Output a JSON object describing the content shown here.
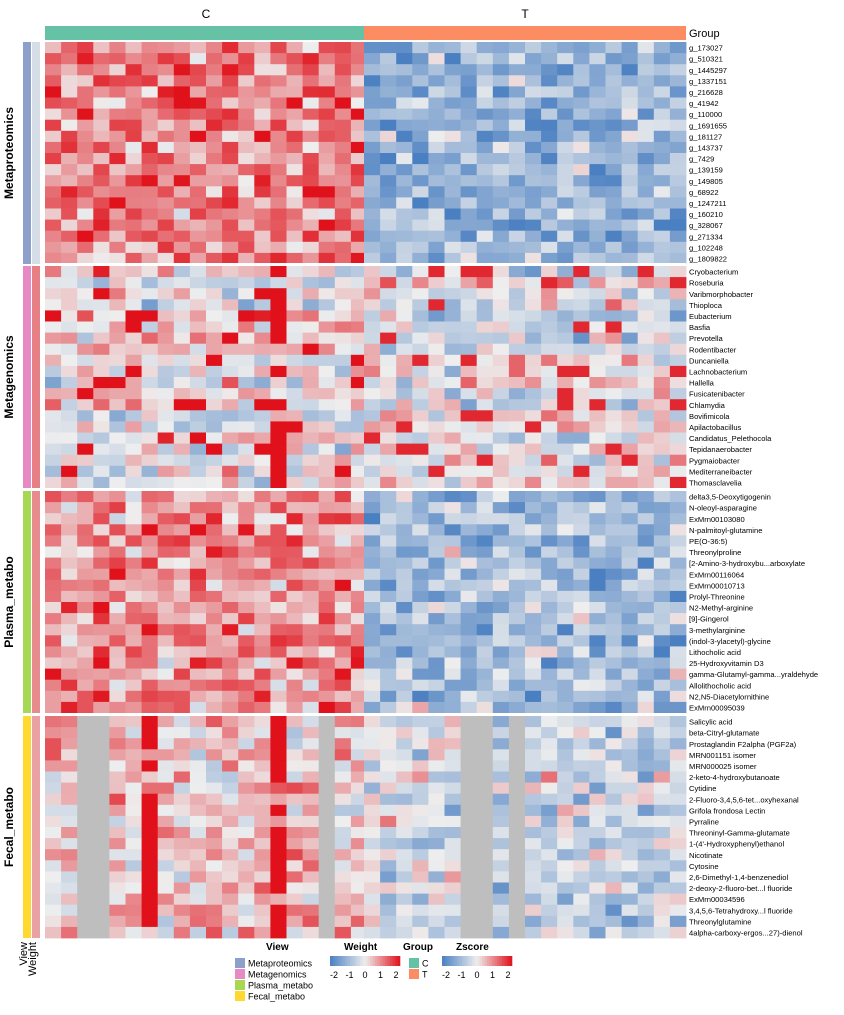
{
  "chart_data": {
    "type": "heatmap",
    "groups": [
      "C",
      "T"
    ],
    "group_colors": {
      "C": "#66c2a5",
      "T": "#fc8d62"
    },
    "group_header_label": "Group",
    "views": [
      {
        "name": "Metaproteomics",
        "color": "#8da0cb",
        "weight": -0.3,
        "features": [
          "g_173027",
          "g_510321",
          "g_1445297",
          "g_1337151",
          "g_216628",
          "g_41942",
          "g_110000",
          "g_1691655",
          "g_181127",
          "g_143737",
          "g_7429",
          "g_139159",
          "g_149805",
          "g_68922",
          "g_1247211",
          "g_160210",
          "g_328067",
          "g_271334",
          "g_102248",
          "g_1809822"
        ]
      },
      {
        "name": "Metagenomics",
        "color": "#e78ac3",
        "weight": 1.0,
        "features": [
          "Cryobacterium",
          "Roseburia",
          "Varibmorphobacter",
          "Thioploca",
          "Eubacterium",
          "Basfia",
          "Prevotella",
          "Rodentibacter",
          "Duncaniella",
          "Lachnobacterium",
          "Hallella",
          "Fusicatenibacter",
          "Chlamydia",
          "Bovifimicola",
          "Apilactobacillus",
          "Candidatus_Pelethocola",
          "Tepidanaerobacter",
          "Pygmaiobacter",
          "Mediterraneibacter",
          "Thomasclavelia"
        ]
      },
      {
        "name": "Plasma_metabo",
        "color": "#a6d854",
        "weight": 0.9,
        "features": [
          "delta3,5-Deoxytigogenin",
          "N-oleoyl-asparagine",
          "ExMrn00103080",
          "N-palmitoyl-glutamine",
          "PE(O-36:5)",
          "Threonylproline",
          "[2-Amino-3-hydroxybu...arboxylate",
          "ExMrn00116064",
          "ExMrn00010713",
          "Prolyl-Threonine",
          "N2-Methyl-arginine",
          "[9]-Gingerol",
          "3-methylarginine",
          "(indol-3-ylacetyl)-glycine",
          "Lithocholic acid",
          "25-Hydroxyvitamin D3",
          "gamma-Glutamyl-gamma...yraldehyde",
          "Allolithocholic acid",
          "N2,N5-Diacetylornithine",
          "ExMrn00095039"
        ]
      },
      {
        "name": "Fecal_metabo",
        "color": "#ffd92f",
        "weight": 0.7,
        "features": [
          "Salicylic acid",
          "beta-Citryl-glutamate",
          "Prostaglandin F2alpha (PGF2a)",
          "MRN001151 isomer",
          "MRN000025 isomer",
          "2-keto-4-hydroxybutanoate",
          "Cytidine",
          "2-Fluoro-3,4,5,6-tet...oxyhexanal",
          "Grifola frondosa Lectin",
          "Pyrraline",
          "Threoninyl-Gamma-glutamate",
          "1-(4'-Hydroxyphenyl)ethanol",
          "Nicotinate",
          "Cytosine",
          "2,6-Dimethyl-1,4-benzenediol",
          "2-deoxy-2-fluoro-bet...l fluoride",
          "ExMrn00034596",
          "3,4,5,6-Tetrahydroxy...l fluoride",
          "Threonylglutamine",
          "4alpha-carboxy-ergos...27)-dienol"
        ]
      }
    ],
    "samples_per_group": 20,
    "missing_columns": {
      "Fecal_metabo": {
        "C": [
          2,
          3,
          17
        ],
        "T": [
          6,
          7,
          9
        ]
      }
    },
    "zscore_range": [
      -2,
      2
    ],
    "weight_range": [
      -2,
      2
    ],
    "bottom_row_labels": [
      "View",
      "Weight"
    ],
    "legend": {
      "view_title": "View",
      "weight_title": "Weight",
      "group_title": "Group",
      "zscore_title": "Zscore",
      "scale_ticks": [
        "-2",
        "-1",
        "0",
        "1",
        "2"
      ]
    },
    "colors": {
      "low": "#4a7fc1",
      "mid": "#eeeeee",
      "high": "#e0111a",
      "missing": "#bebebe",
      "separator": "#ffffff"
    }
  }
}
